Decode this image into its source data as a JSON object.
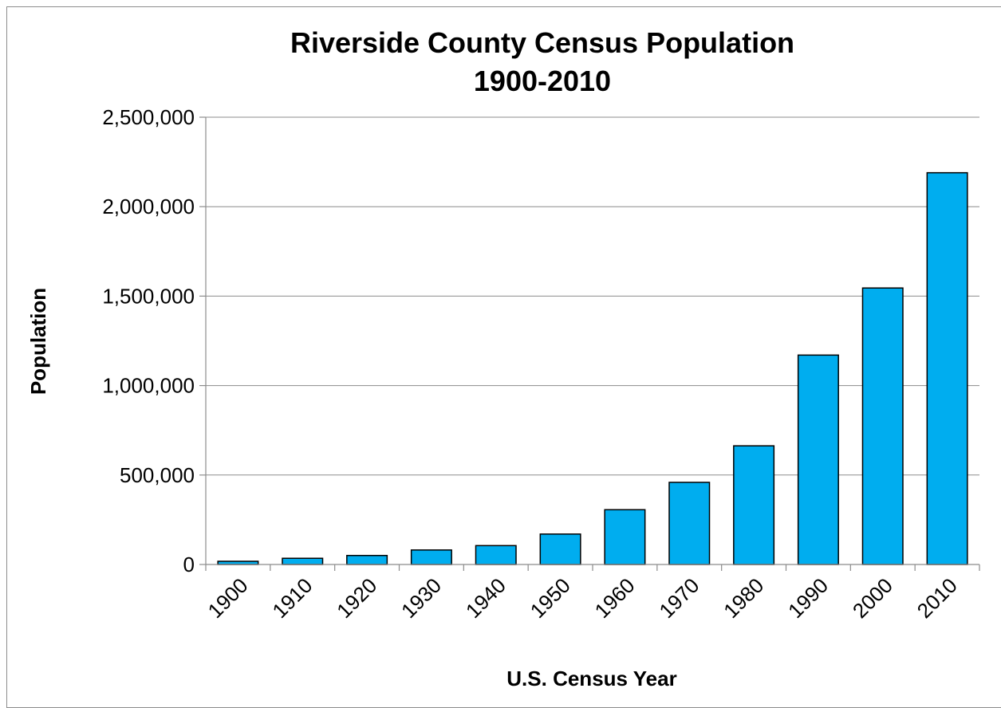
{
  "chart_data": {
    "type": "bar",
    "title": [
      "Riverside County Census Population",
      "1900-2010"
    ],
    "xlabel": "U.S. Census Year",
    "ylabel": "Population",
    "categories": [
      "1900",
      "1910",
      "1920",
      "1930",
      "1940",
      "1950",
      "1960",
      "1970",
      "1980",
      "1990",
      "2000",
      "2010"
    ],
    "values": [
      17897,
      34696,
      50297,
      81024,
      105524,
      170046,
      306191,
      459074,
      663166,
      1170413,
      1545387,
      2189641
    ],
    "ylim": [
      0,
      2500000
    ],
    "yticks": [
      0,
      500000,
      1000000,
      1500000,
      2000000,
      2500000
    ],
    "ytick_labels": [
      "0",
      "500,000",
      "1,000,000",
      "1,500,000",
      "2,000,000",
      "2,500,000"
    ],
    "bar_color": "#00ADEF",
    "grid": true,
    "legend": "none"
  }
}
